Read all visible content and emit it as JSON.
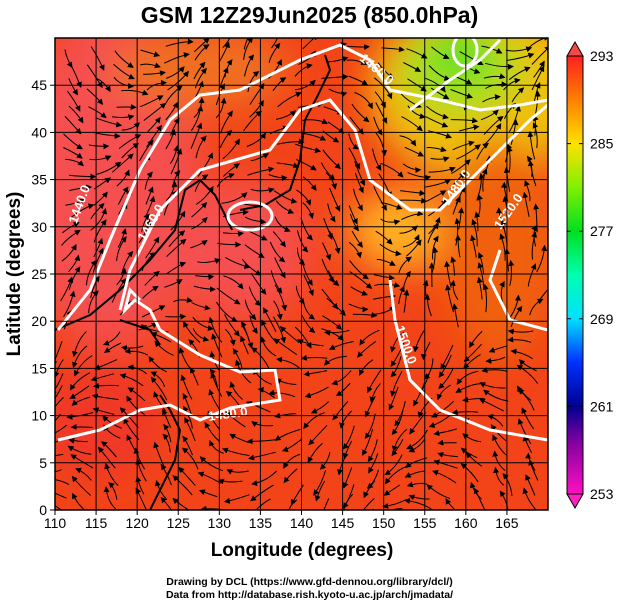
{
  "title": "GSM 12Z29Jun2025 (850.0hPa)",
  "xaxis": {
    "label": "Longitude (degrees)",
    "ticks": [
      110,
      115,
      120,
      125,
      130,
      135,
      140,
      145,
      150,
      155,
      160,
      165
    ],
    "range": [
      110,
      170
    ]
  },
  "yaxis": {
    "label": "Latitude  (degrees)",
    "ticks": [
      0,
      5,
      10,
      15,
      20,
      25,
      30,
      35,
      40,
      45
    ],
    "range": [
      0,
      50
    ]
  },
  "colorbar": {
    "ticks": [
      "293",
      "285",
      "277",
      "269",
      "261",
      "253"
    ],
    "range": [
      253,
      293
    ],
    "colors": [
      "#ff00cc",
      "#8000b0",
      "#0000c0",
      "#0060ff",
      "#00e0ff",
      "#00ffa0",
      "#00e020",
      "#80f000",
      "#f0ff00",
      "#ffa000",
      "#ff5010",
      "#ff2020"
    ]
  },
  "contours": {
    "labels": [
      "1440.0",
      "1460.0",
      "1480.0",
      "1500.0",
      "1520.0",
      "1460.0",
      "1480.0"
    ]
  },
  "credits": {
    "line1": "Drawing by DCL (https://www.gfd-dennou.org/library/dcl/)",
    "line2": "Data from http://database.rish.kyoto-u.ac.jp/arch/jmadata/"
  }
}
